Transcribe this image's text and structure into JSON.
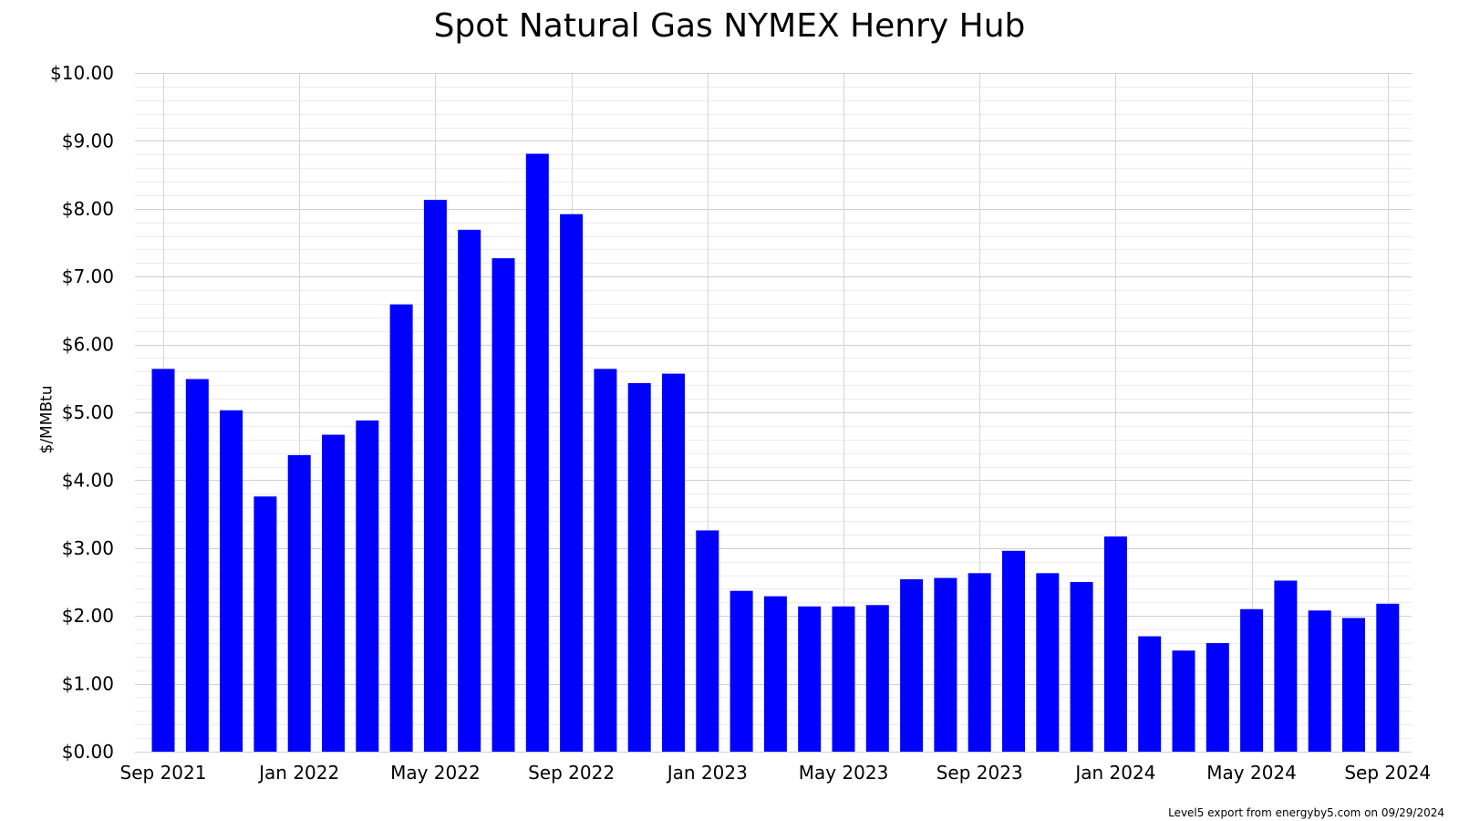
{
  "chart_data": {
    "type": "bar",
    "title": "Spot Natural Gas NYMEX Henry Hub",
    "ylabel": "$/MMBtu",
    "xlabel": "",
    "ylim": [
      0,
      10
    ],
    "y_ticks": [
      "$0.00",
      "$1.00",
      "$2.00",
      "$3.00",
      "$4.00",
      "$5.00",
      "$6.00",
      "$7.00",
      "$8.00",
      "$9.00",
      "$10.00"
    ],
    "x_tick_labels": [
      {
        "label": "Sep 2021",
        "index": 0
      },
      {
        "label": "Jan 2022",
        "index": 4
      },
      {
        "label": "May 2022",
        "index": 8
      },
      {
        "label": "Sep 2022",
        "index": 12
      },
      {
        "label": "Jan 2023",
        "index": 16
      },
      {
        "label": "May 2023",
        "index": 20
      },
      {
        "label": "Sep 2023",
        "index": 24
      },
      {
        "label": "Jan 2024",
        "index": 28
      },
      {
        "label": "May 2024",
        "index": 32
      },
      {
        "label": "Sep 2024",
        "index": 36
      }
    ],
    "grid": true,
    "bar_color": "#0000ff",
    "series": [
      {
        "values": [
          5.64,
          5.49,
          5.03,
          3.76,
          4.37,
          4.67,
          4.88,
          6.59,
          8.13,
          7.69,
          7.27,
          8.81,
          7.92,
          5.64,
          5.43,
          5.57,
          3.26,
          2.37,
          2.29,
          2.14,
          2.14,
          2.16,
          2.54,
          2.56,
          2.63,
          2.96,
          2.63,
          2.5,
          3.17,
          1.7,
          1.49,
          1.6,
          2.1,
          2.52,
          2.08,
          1.97,
          2.18
        ]
      }
    ]
  },
  "footer": "Level5 export from energyby5.com on 09/29/2024"
}
